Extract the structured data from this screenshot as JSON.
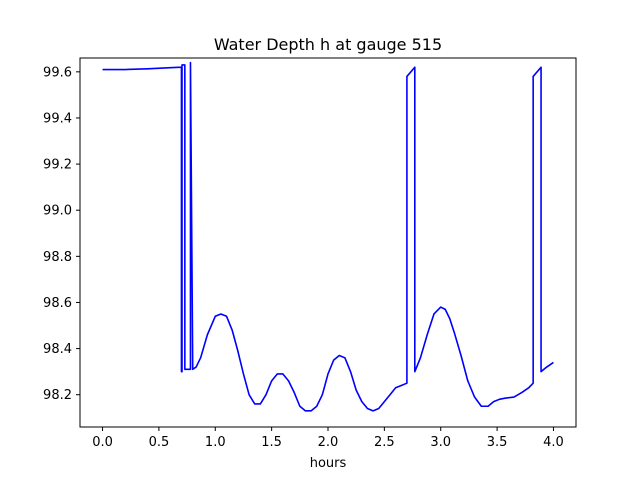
{
  "chart_data": {
    "type": "line",
    "title": "Water Depth h at gauge 515",
    "xlabel": "hours",
    "ylabel": "",
    "xlim": [
      -0.2,
      4.2
    ],
    "ylim": [
      98.06,
      99.66
    ],
    "xticks": [
      0.0,
      0.5,
      1.0,
      1.5,
      2.0,
      2.5,
      3.0,
      3.5,
      4.0
    ],
    "xtick_labels": [
      "0.0",
      "0.5",
      "1.0",
      "1.5",
      "2.0",
      "2.5",
      "3.0",
      "3.5",
      "4.0"
    ],
    "yticks": [
      98.2,
      98.4,
      98.6,
      98.8,
      99.0,
      99.2,
      99.4,
      99.6
    ],
    "ytick_labels": [
      "98.2",
      "98.4",
      "98.6",
      "98.8",
      "99.0",
      "99.2",
      "99.4",
      "99.6"
    ],
    "grid": false,
    "series": [
      {
        "name": "",
        "color": "#0000ff",
        "x": [
          0.0,
          0.2,
          0.4,
          0.6,
          0.7,
          0.7,
          0.705,
          0.705,
          0.73,
          0.73,
          0.78,
          0.78,
          0.8,
          0.83,
          0.87,
          0.93,
          1.0,
          1.05,
          1.1,
          1.15,
          1.2,
          1.25,
          1.3,
          1.35,
          1.4,
          1.45,
          1.5,
          1.55,
          1.6,
          1.65,
          1.7,
          1.75,
          1.8,
          1.85,
          1.9,
          1.95,
          2.0,
          2.05,
          2.1,
          2.15,
          2.2,
          2.25,
          2.3,
          2.35,
          2.4,
          2.45,
          2.5,
          2.55,
          2.6,
          2.65,
          2.7,
          2.7,
          2.77,
          2.77,
          2.82,
          2.88,
          2.94,
          3.0,
          3.04,
          3.08,
          3.12,
          3.18,
          3.24,
          3.3,
          3.36,
          3.42,
          3.47,
          3.52,
          3.57,
          3.65,
          3.72,
          3.78,
          3.82,
          3.82,
          3.89,
          3.89,
          3.94,
          4.0
        ],
        "y": [
          99.61,
          99.61,
          99.613,
          99.618,
          99.62,
          98.3,
          98.3,
          99.63,
          99.63,
          98.31,
          98.31,
          99.64,
          98.31,
          98.32,
          98.36,
          98.46,
          98.54,
          98.55,
          98.54,
          98.48,
          98.39,
          98.29,
          98.2,
          98.16,
          98.16,
          98.2,
          98.26,
          98.29,
          98.29,
          98.26,
          98.21,
          98.15,
          98.13,
          98.13,
          98.15,
          98.2,
          98.29,
          98.35,
          98.37,
          98.36,
          98.3,
          98.22,
          98.17,
          98.14,
          98.13,
          98.14,
          98.17,
          98.2,
          98.23,
          98.24,
          98.25,
          99.58,
          99.62,
          98.3,
          98.36,
          98.46,
          98.55,
          98.58,
          98.57,
          98.53,
          98.47,
          98.37,
          98.26,
          98.19,
          98.15,
          98.15,
          98.17,
          98.18,
          98.185,
          98.19,
          98.21,
          98.23,
          98.25,
          99.58,
          99.62,
          98.3,
          98.32,
          98.34
        ]
      }
    ]
  }
}
